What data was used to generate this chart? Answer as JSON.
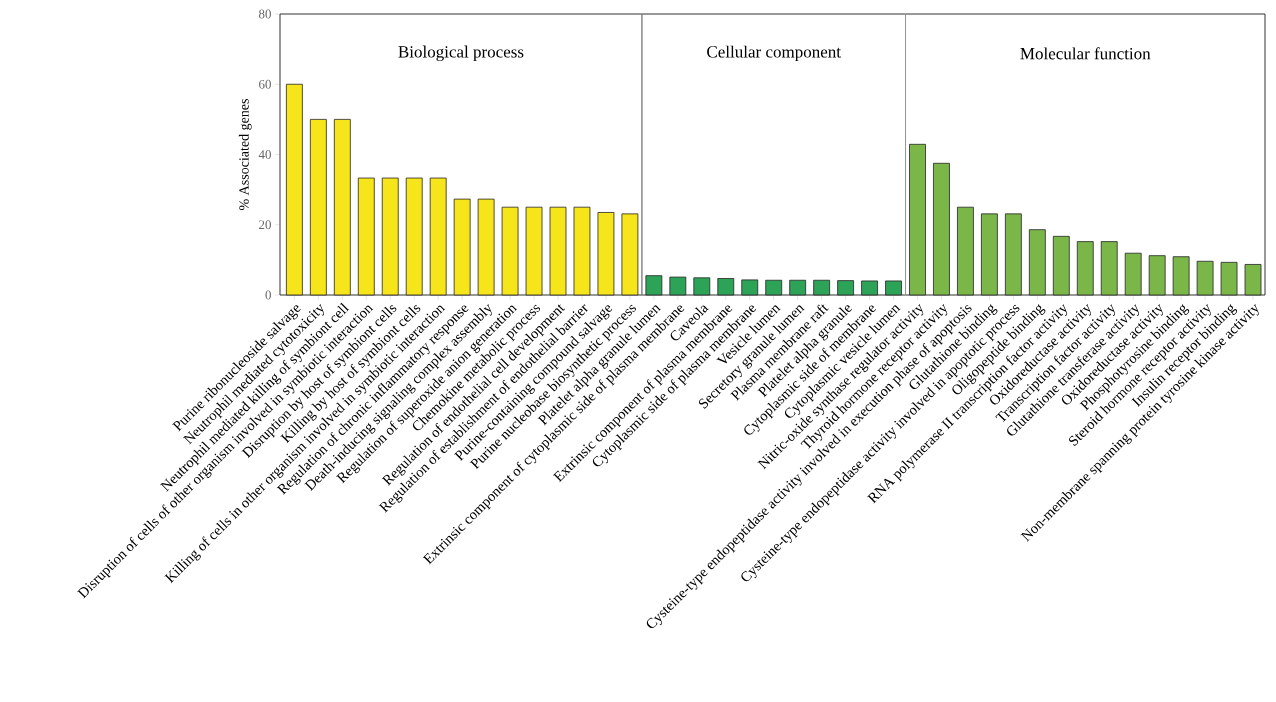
{
  "chart_data": [
    {
      "type": "bar",
      "title": "Biological process",
      "ylabel": "% Associated genes",
      "categories": [
        "Purine ribonucleoside salvage",
        "Neutrophil mediated cytotoxicity",
        "Neutrophil mediated killing of symbiont cell",
        "Disruption of cells of other organism involved in symbiotic interaction",
        "Disruption by host of symbiont cells",
        "Killing by host of symbiont cells",
        "Killing of cells in other organism involved in symbiotic interaction",
        "Regulation of chronic inflammatory response",
        "Death-inducing signaling complex assembly",
        "Regulation of superoxide anion generation",
        "Chemokine metabolic process",
        "Regulation of endothelial cell development",
        "Regulation of establishment of endothelial barrier",
        "Purine-containing compound salvage",
        "Purine nucleobase biosynthetic process"
      ],
      "values": [
        60,
        50,
        50,
        33.3,
        33.3,
        33.3,
        33.3,
        27.3,
        27.3,
        25,
        25,
        25,
        25,
        23.5,
        23.1
      ],
      "color": "#f7e51b",
      "ylim": [
        0,
        80
      ],
      "yticks": [
        0,
        20,
        40,
        60,
        80
      ]
    },
    {
      "type": "bar",
      "title": "Cellular component",
      "categories": [
        "Platelet alpha granule lumen",
        "Extrinsic component of cytoplasmic side of plasma membrane",
        "Caveola",
        "Extrinsic component of plasma membrane",
        "Cytoplasmic side of plasma membrane",
        "Vesicle lumen",
        "Secretory granule lumen",
        "Plasma membrane raft",
        "Platelet alpha granule",
        "Cytoplasmic side of membrane",
        "Cytoplasmic vesicle lumen"
      ],
      "values": [
        5.5,
        5.1,
        4.9,
        4.7,
        4.3,
        4.2,
        4.2,
        4.2,
        4.1,
        4.0,
        4.0
      ],
      "color": "#2ca357",
      "ylim": [
        0,
        80
      ],
      "tick_labels": "x"
    },
    {
      "type": "bar",
      "title": "Molecular function",
      "categories": [
        "Nitric-oxide synthase regulator activity",
        "Thyroid hormone receptor activity",
        "Cysteine-type endopeptidase activity involved in execution phase of apoptosis",
        "Glutathione binding",
        "Cysteine-type endopeptidase activity involved in apoptotic process",
        "Oligopeptide binding",
        "RNA polymerase II transcription factor activity",
        "Oxidoreductase activity",
        "Transcription factor activity",
        "Glutathione transferase activity",
        "Oxidoreductase activity",
        "Phosphotyrosine binding",
        "Steroid hormone receptor activity",
        "Insulin receptor binding",
        "Non-membrane spanning protein tyrosine kinase activity"
      ],
      "values": [
        42.9,
        37.5,
        25,
        23.1,
        23.1,
        18.6,
        16.7,
        15.2,
        15.2,
        11.9,
        11.2,
        10.9,
        9.6,
        9.3,
        8.7
      ],
      "color": "#7ab648",
      "ylim": [
        0,
        80
      ],
      "tick_labels": "x"
    }
  ]
}
